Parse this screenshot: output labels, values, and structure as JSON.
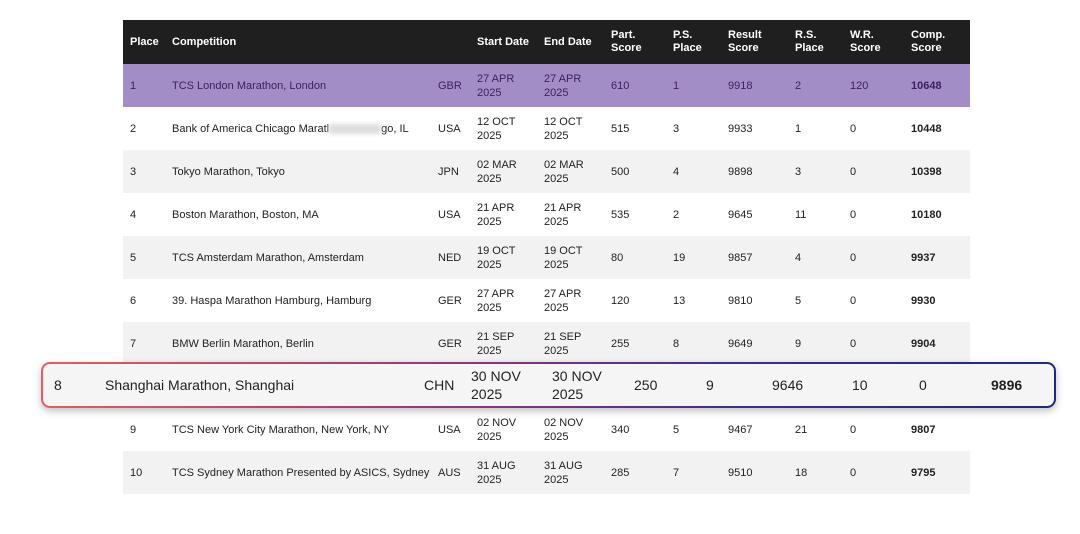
{
  "headers": {
    "place": "Place",
    "competition": "Competition",
    "start_date": "Start Date",
    "end_date": "End Date",
    "part_score": [
      "Part.",
      "Score"
    ],
    "ps_place": [
      "P.S.",
      "Place"
    ],
    "result_score": [
      "Result",
      "Score"
    ],
    "rs_place": [
      "R.S.",
      "Place"
    ],
    "wr_score": [
      "W.R.",
      "Score"
    ],
    "comp_score": [
      "Comp.",
      "Score"
    ]
  },
  "rows": [
    {
      "place": "1",
      "competition": "TCS London Marathon, London",
      "nation": "GBR",
      "start": [
        "27 APR",
        "2025"
      ],
      "end": [
        "27 APR",
        "2025"
      ],
      "part_score": "610",
      "ps_place": "1",
      "result_score": "9918",
      "rs_place": "2",
      "wr_score": "120",
      "comp_score": "10648"
    },
    {
      "place": "2",
      "competition_a": "Bank of America Chicago Maratl",
      "competition_b": "go, IL",
      "nation": "USA",
      "start": [
        "12 OCT",
        "2025"
      ],
      "end": [
        "12 OCT",
        "2025"
      ],
      "part_score": "515",
      "ps_place": "3",
      "result_score": "9933",
      "rs_place": "1",
      "wr_score": "0",
      "comp_score": "10448"
    },
    {
      "place": "3",
      "competition": "Tokyo Marathon, Tokyo",
      "nation": "JPN",
      "start": [
        "02 MAR",
        "2025"
      ],
      "end": [
        "02 MAR",
        "2025"
      ],
      "part_score": "500",
      "ps_place": "4",
      "result_score": "9898",
      "rs_place": "3",
      "wr_score": "0",
      "comp_score": "10398"
    },
    {
      "place": "4",
      "competition": "Boston Marathon, Boston, MA",
      "nation": "USA",
      "start": [
        "21 APR",
        "2025"
      ],
      "end": [
        "21 APR",
        "2025"
      ],
      "part_score": "535",
      "ps_place": "2",
      "result_score": "9645",
      "rs_place": "11",
      "wr_score": "0",
      "comp_score": "10180"
    },
    {
      "place": "5",
      "competition": "TCS Amsterdam Marathon, Amsterdam",
      "nation": "NED",
      "start": [
        "19 OCT",
        "2025"
      ],
      "end": [
        "19 OCT",
        "2025"
      ],
      "part_score": "80",
      "ps_place": "19",
      "result_score": "9857",
      "rs_place": "4",
      "wr_score": "0",
      "comp_score": "9937"
    },
    {
      "place": "6",
      "competition": "39. Haspa Marathon Hamburg, Hamburg",
      "nation": "GER",
      "start": [
        "27 APR",
        "2025"
      ],
      "end": [
        "27 APR",
        "2025"
      ],
      "part_score": "120",
      "ps_place": "13",
      "result_score": "9810",
      "rs_place": "5",
      "wr_score": "0",
      "comp_score": "9930"
    },
    {
      "place": "7",
      "competition": "BMW Berlin Marathon, Berlin",
      "nation": "GER",
      "start": [
        "21 SEP",
        "2025"
      ],
      "end": [
        "21 SEP",
        "2025"
      ],
      "part_score": "255",
      "ps_place": "8",
      "result_score": "9649",
      "rs_place": "9",
      "wr_score": "0",
      "comp_score": "9904"
    },
    {
      "place": "8",
      "competition": "Shanghai Marathon, Shanghai",
      "nation": "CHN",
      "start": [
        "30 NOV",
        "2025"
      ],
      "end": [
        "30 NOV",
        "2025"
      ],
      "part_score": "250",
      "ps_place": "9",
      "result_score": "9646",
      "rs_place": "10",
      "wr_score": "0",
      "comp_score": "9896"
    },
    {
      "place": "9",
      "competition": "TCS New York City Marathon, New York, NY",
      "nation": "USA",
      "start": [
        "02 NOV",
        "2025"
      ],
      "end": [
        "02 NOV",
        "2025"
      ],
      "part_score": "340",
      "ps_place": "5",
      "result_score": "9467",
      "rs_place": "21",
      "wr_score": "0",
      "comp_score": "9807"
    },
    {
      "place": "10",
      "competition": "TCS Sydney Marathon Presented by ASICS, Sydney",
      "nation": "AUS",
      "start": [
        "31 AUG",
        "2025"
      ],
      "end": [
        "31 AUG",
        "2025"
      ],
      "part_score": "285",
      "ps_place": "7",
      "result_score": "9510",
      "rs_place": "18",
      "wr_score": "0",
      "comp_score": "9795"
    }
  ],
  "colors": {
    "header_bg": "#1f1f1f",
    "highlight_row": "#a38dc7",
    "alt_row": "#f2f2f2",
    "card_gradient_start": "#e06060",
    "card_gradient_end": "#1f2a7a"
  }
}
